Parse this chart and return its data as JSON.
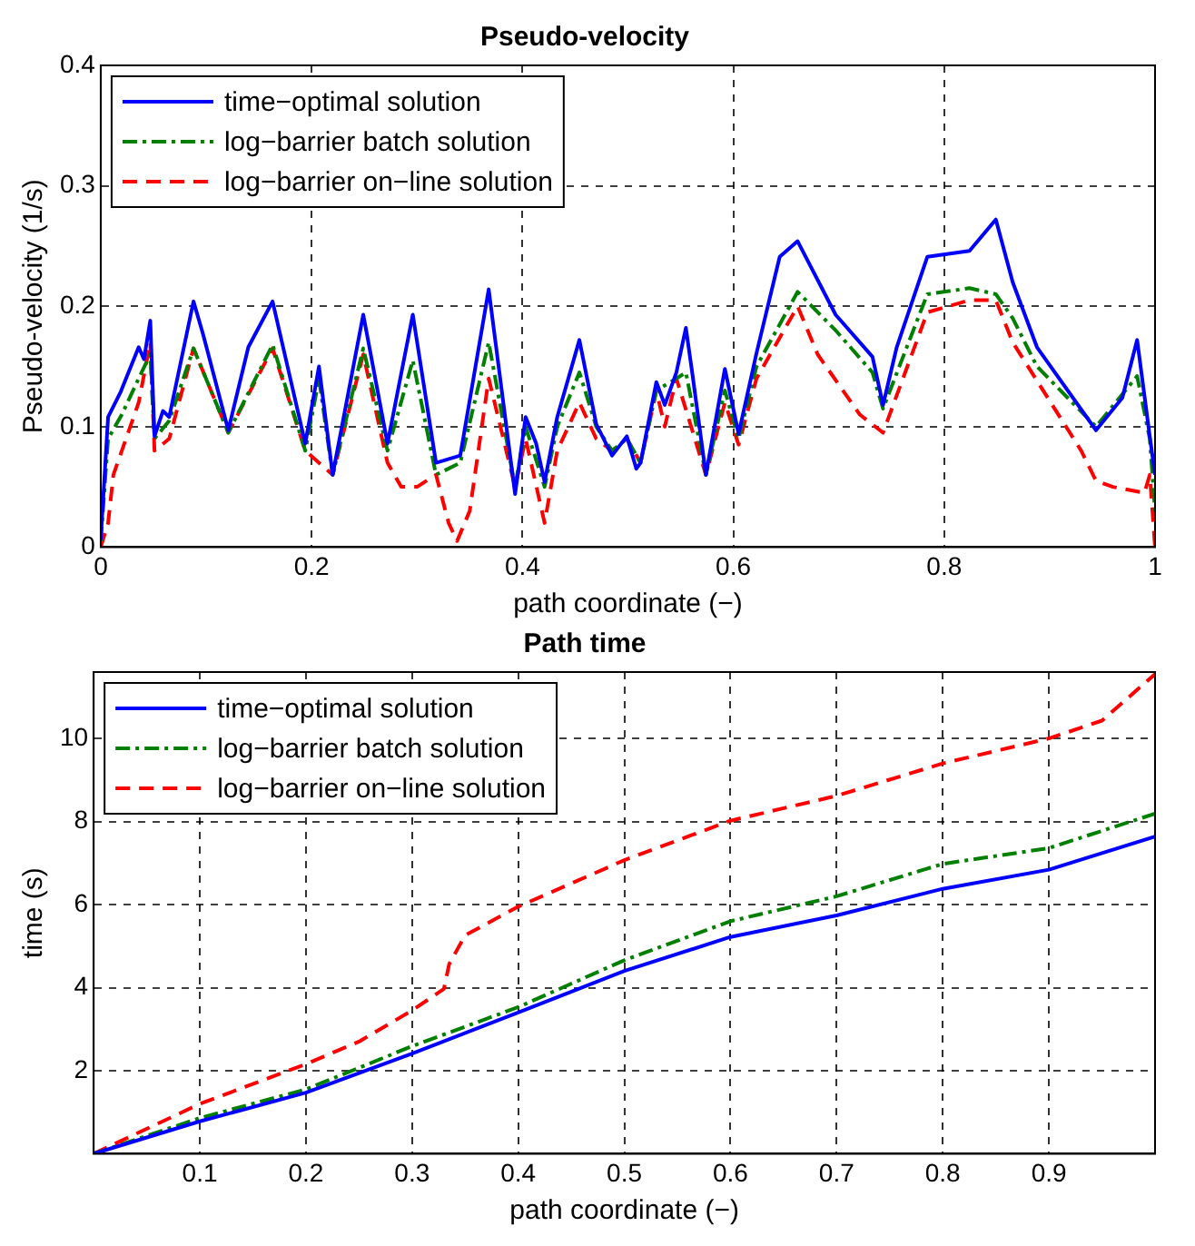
{
  "chart_data": [
    {
      "type": "line",
      "title": "Pseudo-velocity",
      "xlabel": "path coordinate (−)",
      "ylabel": "Pseudo-velocity (1/s)",
      "xlim": [
        0,
        1
      ],
      "ylim": [
        0,
        0.4
      ],
      "xticks": [
        0,
        0.2,
        0.4,
        0.6,
        0.8,
        1
      ],
      "yticks": [
        0,
        0.1,
        0.2,
        0.3,
        0.4
      ],
      "grid": true,
      "legend": "top left",
      "marker": "none",
      "series": [
        {
          "name": "time−optimal solution",
          "color": "#0000ff",
          "line_style": "solid",
          "x": [
            0,
            0.007,
            0.019,
            0.036,
            0.041,
            0.047,
            0.051,
            0.059,
            0.065,
            0.088,
            0.097,
            0.121,
            0.14,
            0.163,
            0.194,
            0.207,
            0.22,
            0.249,
            0.272,
            0.296,
            0.318,
            0.341,
            0.368,
            0.393,
            0.403,
            0.413,
            0.421,
            0.433,
            0.454,
            0.47,
            0.485,
            0.499,
            0.508,
            0.512,
            0.527,
            0.535,
            0.546,
            0.555,
            0.561,
            0.574,
            0.592,
            0.605,
            0.622,
            0.644,
            0.661,
            0.697,
            0.732,
            0.742,
            0.755,
            0.784,
            0.824,
            0.849,
            0.865,
            0.888,
            0.944,
            0.969,
            0.983,
            0.995,
            1
          ],
          "values": [
            0.006,
            0.108,
            0.129,
            0.166,
            0.156,
            0.188,
            0.092,
            0.113,
            0.108,
            0.204,
            0.177,
            0.097,
            0.166,
            0.204,
            0.086,
            0.15,
            0.06,
            0.193,
            0.086,
            0.193,
            0.07,
            0.076,
            0.214,
            0.044,
            0.108,
            0.086,
            0.054,
            0.108,
            0.172,
            0.102,
            0.076,
            0.092,
            0.065,
            0.07,
            0.137,
            0.118,
            0.145,
            0.182,
            0.145,
            0.06,
            0.148,
            0.094,
            0.161,
            0.241,
            0.254,
            0.193,
            0.158,
            0.118,
            0.166,
            0.241,
            0.246,
            0.272,
            0.22,
            0.166,
            0.097,
            0.124,
            0.172,
            0.092,
            0.06
          ]
        },
        {
          "name": "log−barrier batch solution",
          "color": "#007f00",
          "line_style": "dashdot",
          "x": [
            0,
            0.007,
            0.02,
            0.036,
            0.047,
            0.051,
            0.065,
            0.088,
            0.121,
            0.163,
            0.194,
            0.207,
            0.22,
            0.249,
            0.272,
            0.296,
            0.318,
            0.341,
            0.368,
            0.393,
            0.403,
            0.421,
            0.433,
            0.454,
            0.47,
            0.485,
            0.499,
            0.512,
            0.527,
            0.546,
            0.555,
            0.574,
            0.592,
            0.605,
            0.622,
            0.661,
            0.697,
            0.732,
            0.742,
            0.784,
            0.824,
            0.849,
            0.865,
            0.888,
            0.944,
            0.983,
            0.995,
            1
          ],
          "values": [
            0.005,
            0.09,
            0.11,
            0.14,
            0.16,
            0.09,
            0.105,
            0.165,
            0.095,
            0.168,
            0.08,
            0.14,
            0.06,
            0.165,
            0.08,
            0.155,
            0.06,
            0.07,
            0.17,
            0.05,
            0.1,
            0.05,
            0.1,
            0.145,
            0.1,
            0.08,
            0.09,
            0.07,
            0.13,
            0.14,
            0.145,
            0.06,
            0.13,
            0.09,
            0.15,
            0.212,
            0.18,
            0.145,
            0.115,
            0.21,
            0.215,
            0.21,
            0.19,
            0.15,
            0.1,
            0.142,
            0.09,
            0.03
          ]
        },
        {
          "name": "log−barrier on−line solution",
          "color": "#ff0000",
          "line_style": "dashed",
          "x": [
            0,
            0.007,
            0.012,
            0.02,
            0.036,
            0.047,
            0.051,
            0.065,
            0.088,
            0.121,
            0.163,
            0.194,
            0.22,
            0.249,
            0.272,
            0.285,
            0.3,
            0.318,
            0.33,
            0.338,
            0.35,
            0.368,
            0.393,
            0.403,
            0.421,
            0.433,
            0.454,
            0.47,
            0.485,
            0.499,
            0.512,
            0.527,
            0.535,
            0.546,
            0.574,
            0.592,
            0.605,
            0.622,
            0.661,
            0.68,
            0.72,
            0.742,
            0.784,
            0.824,
            0.849,
            0.865,
            0.93,
            0.944,
            0.96,
            0.99,
            0.995,
            1
          ],
          "values": [
            0,
            0.02,
            0.06,
            0.08,
            0.12,
            0.17,
            0.08,
            0.09,
            0.165,
            0.095,
            0.165,
            0.08,
            0.06,
            0.16,
            0.07,
            0.05,
            0.05,
            0.06,
            0.02,
            0.005,
            0.03,
            0.14,
            0.05,
            0.09,
            0.02,
            0.08,
            0.12,
            0.09,
            0.08,
            0.09,
            0.07,
            0.13,
            0.1,
            0.14,
            0.06,
            0.12,
            0.085,
            0.14,
            0.2,
            0.16,
            0.11,
            0.095,
            0.195,
            0.205,
            0.205,
            0.17,
            0.08,
            0.055,
            0.05,
            0.045,
            0.06,
            0
          ]
        }
      ]
    },
    {
      "type": "line",
      "title": "Path time",
      "xlabel": "path coordinate (−)",
      "ylabel": "time (s)",
      "xlim": [
        0,
        1
      ],
      "ylim": [
        0,
        11.6
      ],
      "xticks": [
        0.1,
        0.2,
        0.3,
        0.4,
        0.5,
        0.6,
        0.7,
        0.8,
        0.9
      ],
      "yticks": [
        2,
        4,
        6,
        8,
        10
      ],
      "grid": true,
      "legend": "top left",
      "marker": "none",
      "series": [
        {
          "name": "time−optimal solution",
          "color": "#0000ff",
          "line_style": "solid",
          "x": [
            0,
            0.1,
            0.2,
            0.3,
            0.4,
            0.5,
            0.6,
            0.7,
            0.8,
            0.9,
            1
          ],
          "values": [
            0,
            0.78,
            1.47,
            2.41,
            3.4,
            4.4,
            5.22,
            5.74,
            6.38,
            6.84,
            7.64
          ]
        },
        {
          "name": "log−barrier batch solution",
          "color": "#007f00",
          "line_style": "dashdot",
          "x": [
            0,
            0.1,
            0.2,
            0.3,
            0.4,
            0.5,
            0.6,
            0.7,
            0.8,
            0.9,
            1
          ],
          "values": [
            0,
            0.86,
            1.55,
            2.59,
            3.53,
            4.66,
            5.6,
            6.2,
            6.98,
            7.36,
            8.19
          ]
        },
        {
          "name": "log−barrier on−line solution",
          "color": "#ff0000",
          "line_style": "dashed",
          "x": [
            0,
            0.1,
            0.2,
            0.25,
            0.3,
            0.33,
            0.335,
            0.35,
            0.4,
            0.5,
            0.6,
            0.7,
            0.8,
            0.9,
            0.95,
            1
          ],
          "values": [
            0,
            1.2,
            2.16,
            2.7,
            3.45,
            3.97,
            4.57,
            5.26,
            5.95,
            7.07,
            8.02,
            8.62,
            9.4,
            10.0,
            10.43,
            11.55
          ]
        }
      ]
    }
  ]
}
